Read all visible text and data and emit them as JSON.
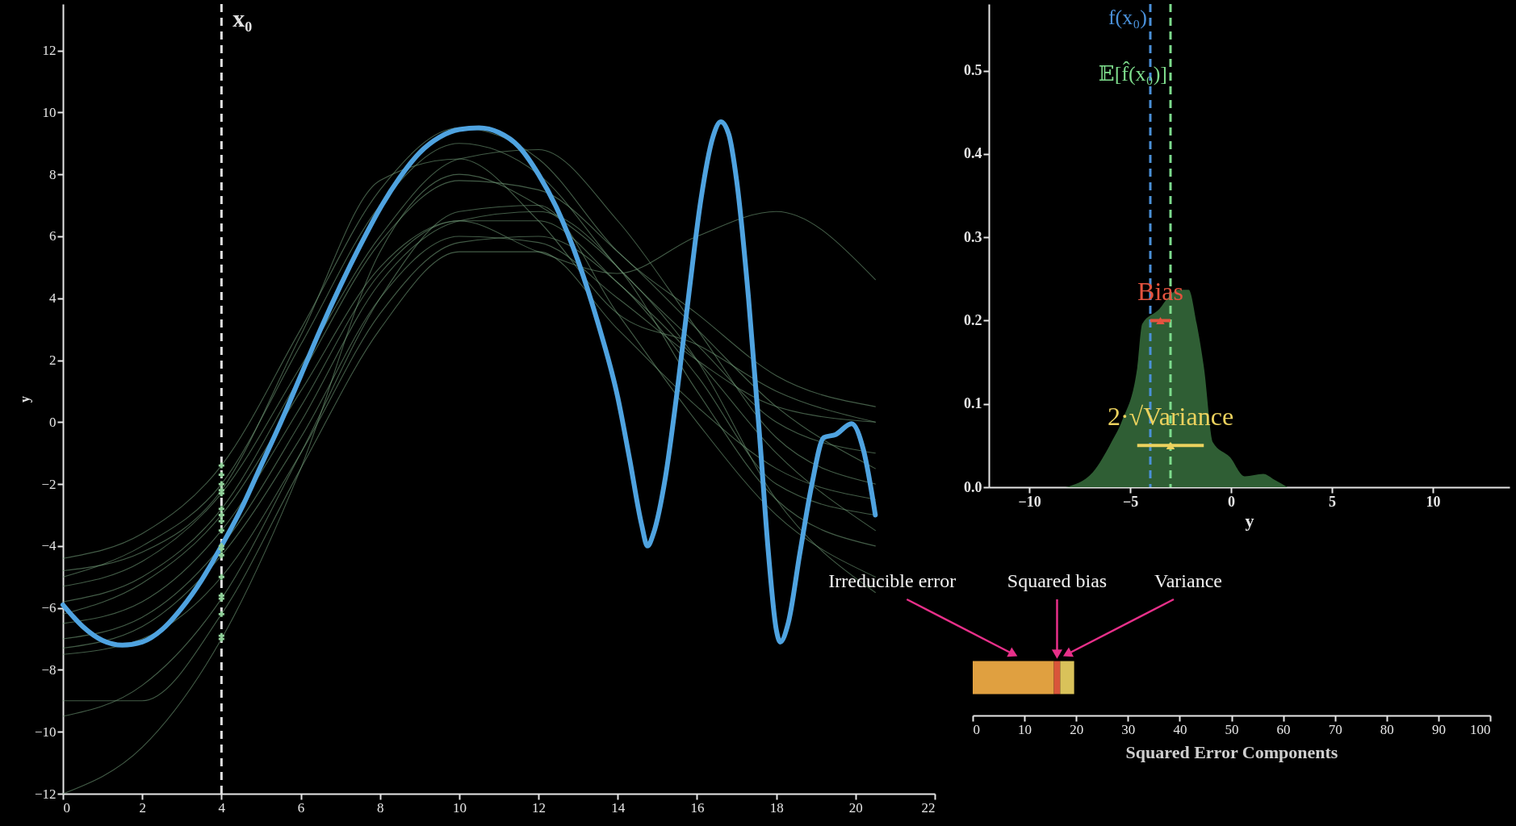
{
  "chart_data": [
    {
      "type": "line",
      "xlim": [
        0,
        22
      ],
      "xticks": [
        0,
        2,
        4,
        6,
        8,
        10,
        12,
        14,
        16,
        18,
        20,
        22
      ],
      "ylim": [
        -12,
        13.5
      ],
      "yticks": [
        -12,
        -10,
        -8,
        -6,
        -4,
        -2,
        0,
        2,
        4,
        6,
        8,
        10,
        12
      ],
      "ylabel": "y",
      "series": [
        {
          "color": "#4fa3e0",
          "x": [
            0,
            0.5,
            1,
            1.5,
            2,
            2.5,
            3,
            3.5,
            4,
            4.5,
            5,
            5.5,
            6,
            6.5,
            7,
            7.5,
            8,
            8.5,
            9,
            9.5,
            10,
            10.5,
            11,
            11.5,
            12,
            12.5,
            13,
            13.5,
            14,
            14.3,
            14.6,
            14.75,
            14.9,
            15.2,
            15.5,
            15.8,
            16.1,
            16.4,
            16.6,
            16.8,
            17,
            17.3,
            17.6,
            17.8,
            18,
            18.1,
            18.3,
            18.6,
            18.9,
            19.2,
            19.5,
            19.9,
            20.2,
            20.5
          ],
          "values": [
            -5.9,
            -6.6,
            -7.05,
            -7.2,
            -7.1,
            -6.7,
            -6,
            -5.1,
            -4,
            -2.8,
            -1.4,
            0,
            1.5,
            3,
            4.4,
            5.7,
            6.9,
            7.9,
            8.7,
            9.2,
            9.45,
            9.5,
            9.35,
            8.9,
            8,
            6.8,
            5.2,
            3.2,
            0.8,
            -1.2,
            -3.3,
            -4,
            -3.6,
            -1.8,
            1,
            4.2,
            7.2,
            9.2,
            9.7,
            9.3,
            7.8,
            4,
            -0.8,
            -4.2,
            -6.7,
            -7.1,
            -6.5,
            -4.2,
            -2,
            -0.5,
            -0.4,
            -0.05,
            -0.9,
            -3
          ]
        },
        {
          "color": "#6f9a76",
          "x": [
            0,
            2,
            4,
            6,
            8,
            10,
            12,
            14,
            16,
            18,
            20.5
          ],
          "values": [
            -4.4,
            -3.6,
            -1.4,
            3,
            7.5,
            9.5,
            8.5,
            5.5,
            3.5,
            1.5,
            0.5
          ]
        },
        {
          "color": "#6f9a76",
          "x": [
            0,
            2,
            4,
            6,
            8,
            10,
            12,
            14,
            16,
            18,
            20.5
          ],
          "values": [
            -5,
            -4,
            -2,
            2.5,
            7,
            9,
            8,
            5,
            2.5,
            0,
            -1
          ]
        },
        {
          "color": "#6f9a76",
          "x": [
            0,
            2,
            4,
            6,
            8,
            10,
            12,
            14,
            16,
            18,
            20.5
          ],
          "values": [
            -5.3,
            -4.5,
            -2.3,
            1.8,
            6,
            8.5,
            8.8,
            6.5,
            3,
            -0.5,
            -2
          ]
        },
        {
          "color": "#6f9a76",
          "x": [
            0,
            2,
            4,
            6,
            8,
            10,
            12,
            14,
            16,
            18,
            20.5
          ],
          "values": [
            -5.8,
            -5,
            -2.8,
            1.5,
            5.8,
            7.8,
            7.5,
            5.5,
            3,
            0.5,
            -1.5
          ]
        },
        {
          "color": "#6f9a76",
          "x": [
            0,
            2,
            4,
            6,
            8,
            10,
            12,
            14,
            16,
            18,
            20.5
          ],
          "values": [
            -6.2,
            -5.2,
            -3,
            1,
            5,
            6.5,
            5.5,
            4.8,
            6,
            6.8,
            4.6
          ]
        },
        {
          "color": "#6f9a76",
          "x": [
            0,
            2,
            4,
            6,
            8,
            10,
            12,
            14,
            16,
            18,
            20.5
          ],
          "values": [
            -6.5,
            -5.8,
            -3.5,
            0.5,
            4.8,
            6.5,
            6.5,
            4.5,
            2,
            -1,
            -3.5
          ]
        },
        {
          "color": "#6f9a76",
          "x": [
            0,
            2,
            4,
            6,
            8,
            10,
            12,
            14,
            16,
            18,
            20.5
          ],
          "values": [
            -7,
            -6.3,
            -4,
            0,
            4.5,
            6.5,
            6.8,
            5,
            1,
            -2.5,
            -4
          ]
        },
        {
          "color": "#6f9a76",
          "x": [
            0,
            2,
            4,
            6,
            8,
            10,
            12,
            14,
            16,
            18,
            20.5
          ],
          "values": [
            -7.3,
            -6.6,
            -4.3,
            -0.5,
            4,
            6,
            5.8,
            4,
            2,
            0.5,
            0
          ]
        },
        {
          "color": "#6f9a76",
          "x": [
            0,
            2,
            4,
            6,
            8,
            10,
            12,
            14,
            16,
            18,
            20.5
          ],
          "values": [
            -7.5,
            -7,
            -5,
            -1,
            3.5,
            5.8,
            6,
            4.5,
            1.5,
            -2,
            -3
          ]
        },
        {
          "color": "#6f9a76",
          "x": [
            0,
            2,
            4,
            6,
            8,
            10,
            12,
            14,
            16,
            18,
            20.5
          ],
          "values": [
            -9.5,
            -8.5,
            -5.7,
            -1,
            4,
            6.8,
            7,
            3.5,
            0,
            -3,
            -5
          ]
        },
        {
          "color": "#6f9a76",
          "x": [
            0,
            2,
            4,
            6,
            8,
            10,
            12,
            14,
            16,
            18,
            20.5
          ],
          "values": [
            -9,
            -9,
            -6.2,
            -1.5,
            3,
            5.5,
            5.5,
            3,
            0.5,
            -1.5,
            -2.5
          ]
        },
        {
          "color": "#6f9a76",
          "x": [
            0,
            2,
            4,
            6,
            8,
            10,
            12,
            14,
            16,
            18,
            20.5
          ],
          "values": [
            -12,
            -10.5,
            -7,
            -1.5,
            5.5,
            8,
            7,
            5,
            2,
            -2.5,
            -5.5
          ]
        },
        {
          "color": "#6f9a76",
          "x": [
            0,
            2,
            4,
            6,
            8,
            10,
            12,
            14,
            16,
            18,
            20.5
          ],
          "values": [
            -4.8,
            -4.2,
            -2.2,
            2.8,
            7.8,
            8.5,
            6.5,
            3.5,
            2.5,
            1,
            0
          ]
        },
        {
          "type": "scatter",
          "marker": "cross",
          "color": "#8fcf98",
          "x": [
            4,
            4,
            4,
            4,
            4,
            4,
            4,
            4,
            4,
            4,
            4,
            4,
            4,
            4,
            4,
            4,
            4,
            4
          ],
          "values": [
            -1.4,
            -1.7,
            -2,
            -2.2,
            -2.3,
            -2.8,
            -3,
            -3.2,
            -3.5,
            -4,
            -4.1,
            -4.3,
            -5,
            -5.6,
            -5.7,
            -6.2,
            -6.9,
            -7
          ]
        }
      ],
      "ref_lines": [
        {
          "axis": "x",
          "value": 4,
          "label": "x₀",
          "color": "#e0e0e0",
          "line_style": "dashed"
        }
      ]
    },
    {
      "type": "area",
      "xlim": [
        -12,
        13.8
      ],
      "xticks": [
        -10,
        -5,
        0,
        5,
        10
      ],
      "ylim": [
        0,
        0.58
      ],
      "yticks": [
        {
          "value": 0,
          "label": "0.0"
        },
        0.1,
        0.2,
        0.3,
        0.4,
        0.5
      ],
      "xlabel": "y",
      "series": [
        {
          "color": "#2f5e34",
          "x": [
            -8.2,
            -6.85,
            -5.93,
            -5.4,
            -4.65,
            -4.4,
            -3.55,
            -3.1,
            -2.65,
            -2.1,
            -1.7,
            -1.34,
            -0.9,
            -0.05,
            0.68,
            1.6,
            2.15,
            2.8
          ],
          "values": [
            0,
            0.018,
            0.054,
            0.08,
            0.143,
            0.196,
            0.214,
            0.228,
            0.237,
            0.237,
            0.196,
            0.143,
            0.054,
            0.036,
            0.013,
            0.016,
            0.009,
            0
          ]
        },
        {
          "name": "Bias",
          "type": "scatter",
          "marker": "triangle",
          "color": "#e5533f",
          "x": [
            -3.5
          ],
          "values": [
            0.2
          ],
          "xerrors": [
            [
              -4,
              -3
            ]
          ]
        },
        {
          "name": "2·√Variance",
          "type": "scatter",
          "marker": "triangle",
          "color": "#ecd25e",
          "x": [
            -3
          ],
          "values": [
            0.05
          ],
          "xerrors": [
            [
              -4.65,
              -1.35
            ]
          ]
        }
      ],
      "ref_lines": [
        {
          "axis": "x",
          "value": -4,
          "label": "f(x₀)",
          "color": "#4a90d9",
          "line_style": "dashed"
        },
        {
          "axis": "x",
          "value": -3,
          "label": "𝔼[f̂(x₀)]",
          "color": "#7ddc8c",
          "line_style": "dashed"
        }
      ]
    },
    {
      "type": "bar",
      "orientation": "horizontal",
      "stacked": true,
      "categories": [
        null
      ],
      "xlim": [
        0,
        100
      ],
      "xticks": [
        0,
        10,
        20,
        30,
        40,
        50,
        60,
        70,
        80,
        90,
        100
      ],
      "xlabel": "Squared Error Components",
      "tick_labels": "x",
      "series": [
        {
          "name": "Irreducible error",
          "color": "#e0a040",
          "values": [
            15.7
          ]
        },
        {
          "name": "Squared bias",
          "color": "#d9553a",
          "values": [
            1.2
          ]
        },
        {
          "name": "Variance",
          "color": "#d9c25a",
          "values": [
            2.7
          ]
        }
      ]
    }
  ]
}
